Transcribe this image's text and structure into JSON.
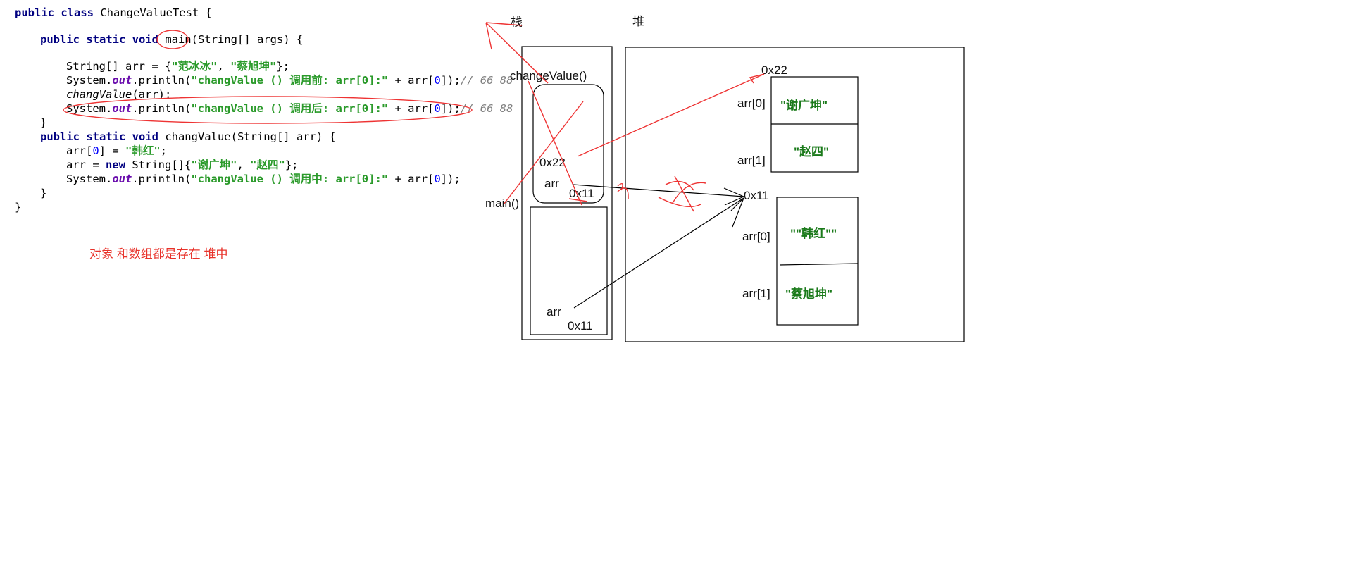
{
  "code": {
    "l1": {
      "kw": "public class ",
      "rest": "ChangeValueTest {"
    },
    "l2": {
      "kw": "public static void ",
      "method": "main",
      "rest": "(String[] args) {"
    },
    "l3": {
      "a": "String[] arr = {",
      "s1": "\"范冰冰\"",
      "b": ", ",
      "s2": "\"蔡旭坤\"",
      "c": "};"
    },
    "l4": {
      "a": "System.",
      "out": "out",
      "b": ".println(",
      "s": "\"changValue () 调用前: arr[0]:\"",
      "c": " + arr[",
      "n": "0",
      "d": "]);",
      "cmt": "// 66 88"
    },
    "l5": {
      "a": "changValue",
      "b": "(arr);"
    },
    "l6": {
      "a": "System.",
      "out": "out",
      "b": ".println(",
      "s": "\"changValue () 调用后: arr[0]:\"",
      "c": " + arr[",
      "n": "0",
      "d": "]);",
      "cmt": "// 66 88"
    },
    "l7": "}",
    "l8": {
      "kw": "public static void ",
      "rest": "changValue(String[] arr) {"
    },
    "l9": {
      "a": "arr[",
      "n": "0",
      "b": "] = ",
      "s": "\"韩红\"",
      "c": ";"
    },
    "l10": {
      "a": "arr = ",
      "kw": "new ",
      "b": "String[]{",
      "s1": "\"谢广坤\"",
      "c": ", ",
      "s2": "\"赵四\"",
      "d": "};"
    },
    "l11": {
      "a": "System.",
      "out": "out",
      "b": ".println(",
      "s": "\"changValue () 调用中: arr[0]:\"",
      "c": " + arr[",
      "n": "0",
      "d": "]);"
    },
    "l12": "}",
    "l13": "}"
  },
  "note": "对象 和数组都是存在 堆中",
  "diagram": {
    "stack_title": "栈",
    "heap_title": "堆",
    "change_value_frame": "changeValue()",
    "main_frame": "main()",
    "cv_addr": "0x22",
    "cv_var": "arr",
    "cv_old_addr": "0x11",
    "main_var": "arr",
    "main_addr": "0x11",
    "heap_new_addr": "0x22",
    "heap_new_idx0": "arr[0]",
    "heap_new_val0": "\"谢广坤\"",
    "heap_new_idx1": "arr[1]",
    "heap_new_val1": "\"赵四\"",
    "heap_old_addr": "0x11",
    "heap_old_idx0": "arr[0]",
    "heap_old_val0": "\"\"韩红\"\"",
    "heap_old_idx1": "arr[1]",
    "heap_old_val1": "\"蔡旭坤\""
  }
}
